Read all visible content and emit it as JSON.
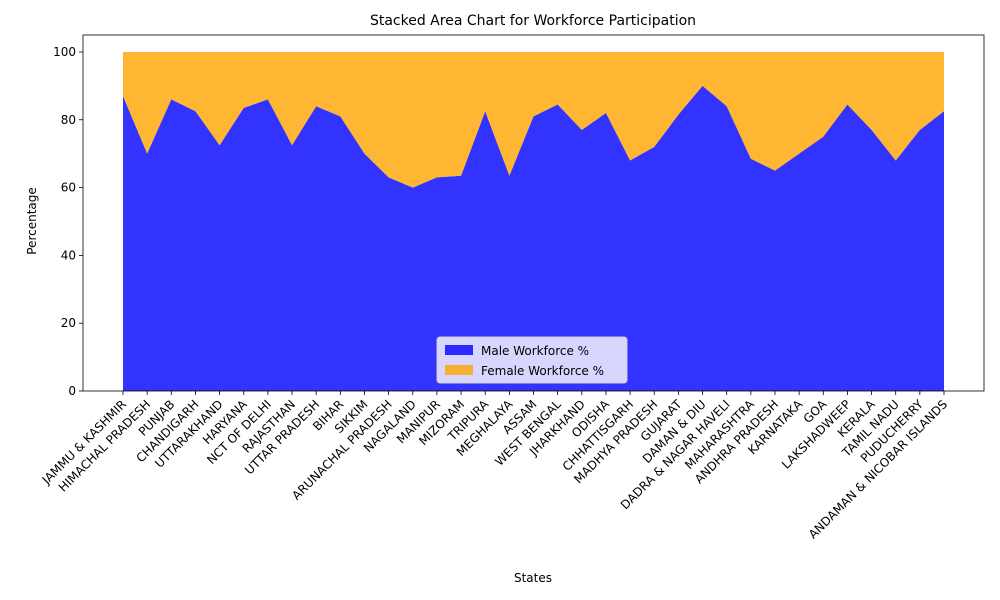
{
  "chart_data": {
    "type": "area",
    "stacked": true,
    "title": "Stacked Area Chart for Workforce Participation",
    "xlabel": "States",
    "ylabel": "Percentage",
    "ylim": [
      0,
      105
    ],
    "yticks": [
      0,
      20,
      40,
      60,
      80,
      100
    ],
    "grid": false,
    "legend_position": "bottom-center",
    "categories": [
      "JAMMU & KASHMIR",
      "HIMACHAL PRADESH",
      "PUNJAB",
      "CHANDIGARH",
      "UTTARAKHAND",
      "HARYANA",
      "NCT OF DELHI",
      "RAJASTHAN",
      "UTTAR PRADESH",
      "BIHAR",
      "SIKKIM",
      "ARUNACHAL PRADESH",
      "NAGALAND",
      "MANIPUR",
      "MIZORAM",
      "TRIPURA",
      "MEGHALAYA",
      "ASSAM",
      "WEST BENGAL",
      "JHARKHAND",
      "ODISHA",
      "CHHATTISGARH",
      "MADHYA PRADESH",
      "GUJARAT",
      "DAMAN & DIU",
      "DADRA & NAGAR HAVELI",
      "MAHARASHTRA",
      "ANDHRA PRADESH",
      "KARNATAKA",
      "GOA",
      "LAKSHADWEEP",
      "KERALA",
      "TAMIL NADU",
      "PUDUCHERRY",
      "ANDAMAN & NICOBAR ISLANDS"
    ],
    "series": [
      {
        "name": "Male Workforce %",
        "color": "#0000ff",
        "opacity": 0.8,
        "values": [
          87,
          70,
          86,
          82.5,
          72.5,
          83.5,
          86,
          72.5,
          84,
          81,
          70,
          63,
          60,
          63,
          63.5,
          82.5,
          63.5,
          81,
          84.5,
          77,
          82,
          68,
          72,
          81.5,
          90,
          84,
          68.5,
          65,
          70,
          75,
          84.5,
          77,
          68,
          77,
          82.5
        ]
      },
      {
        "name": "Female Workforce %",
        "color": "#ffa500",
        "opacity": 0.8,
        "values": [
          13,
          30,
          14,
          17.5,
          27.5,
          16.5,
          14,
          27.5,
          16,
          19,
          30,
          37,
          40,
          37,
          36.5,
          17.5,
          36.5,
          19,
          15.5,
          23,
          18,
          32,
          28,
          18.5,
          10,
          16,
          31.5,
          35,
          30,
          25,
          15.5,
          23,
          32,
          23,
          17.5
        ]
      }
    ]
  }
}
